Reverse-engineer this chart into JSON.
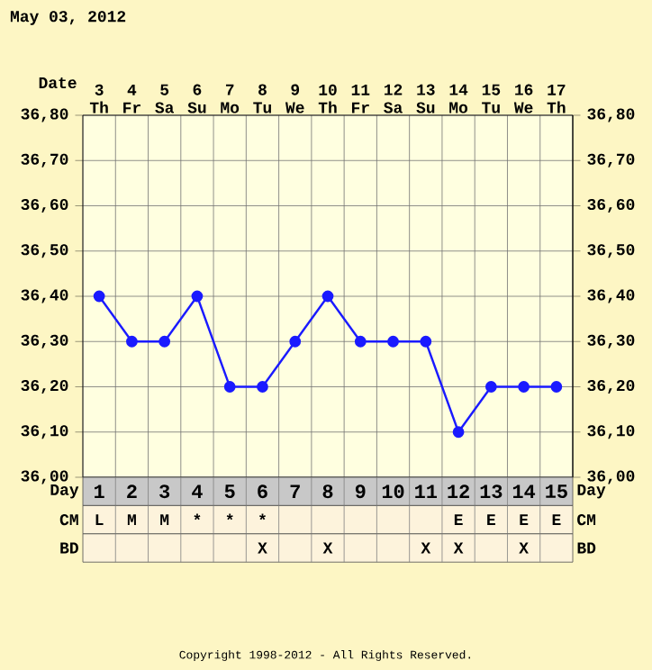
{
  "chart_data": {
    "type": "line",
    "title": "May 03, 2012",
    "categories": [
      "3 Th",
      "4 Fr",
      "5 Sa",
      "6 Su",
      "7 Mo",
      "8 Tu",
      "9 We",
      "10 Th",
      "11 Fr",
      "12 Sa",
      "13 Su",
      "14 Mo",
      "15 Tu",
      "16 We",
      "17 Th"
    ],
    "series": [
      {
        "color": "#1a1aff",
        "values": [
          36.4,
          36.3,
          36.3,
          36.4,
          36.2,
          36.2,
          36.3,
          36.4,
          36.3,
          36.3,
          36.3,
          36.1,
          36.2,
          36.2,
          36.2
        ]
      }
    ],
    "ylim": [
      36.0,
      36.8
    ],
    "yticks": [
      {
        "value": 36.0,
        "label": "36,00"
      },
      {
        "value": 36.1,
        "label": "36,10"
      },
      {
        "value": 36.2,
        "label": "36,20"
      },
      {
        "value": 36.3,
        "label": "36,30"
      },
      {
        "value": 36.4,
        "label": "36,40"
      },
      {
        "value": 36.5,
        "label": "36,50"
      },
      {
        "value": 36.6,
        "label": "36,60"
      },
      {
        "value": 36.7,
        "label": "36,70"
      },
      {
        "value": 36.8,
        "label": "36,80"
      }
    ],
    "y2lim": [
      36.0,
      36.8
    ],
    "y2ticks": [
      {
        "value": 36.0,
        "label": "36,00"
      },
      {
        "value": 36.1,
        "label": "36,10"
      },
      {
        "value": 36.2,
        "label": "36,20"
      },
      {
        "value": 36.3,
        "label": "36,30"
      },
      {
        "value": 36.4,
        "label": "36,40"
      },
      {
        "value": 36.5,
        "label": "36,50"
      },
      {
        "value": 36.6,
        "label": "36,60"
      },
      {
        "value": 36.7,
        "label": "36,70"
      },
      {
        "value": 36.8,
        "label": "36,80"
      }
    ],
    "grid": true,
    "marker": "circle",
    "line_style": "solid",
    "annotations": [
      "Date",
      "Day",
      "1",
      "2",
      "3",
      "4",
      "5",
      "6",
      "7",
      "8",
      "9",
      "10",
      "11",
      "12",
      "13",
      "14",
      "15",
      "CM",
      "L",
      "M",
      "M",
      "*",
      "*",
      "*",
      null,
      null,
      null,
      null,
      null,
      "E",
      "E",
      "E",
      "E",
      "BD",
      null,
      null,
      null,
      null,
      null,
      "X",
      null,
      "X",
      null,
      null,
      "X",
      "X",
      null,
      "X",
      null,
      "Copyright 1998-2012 - All Rights Reserved."
    ]
  }
}
